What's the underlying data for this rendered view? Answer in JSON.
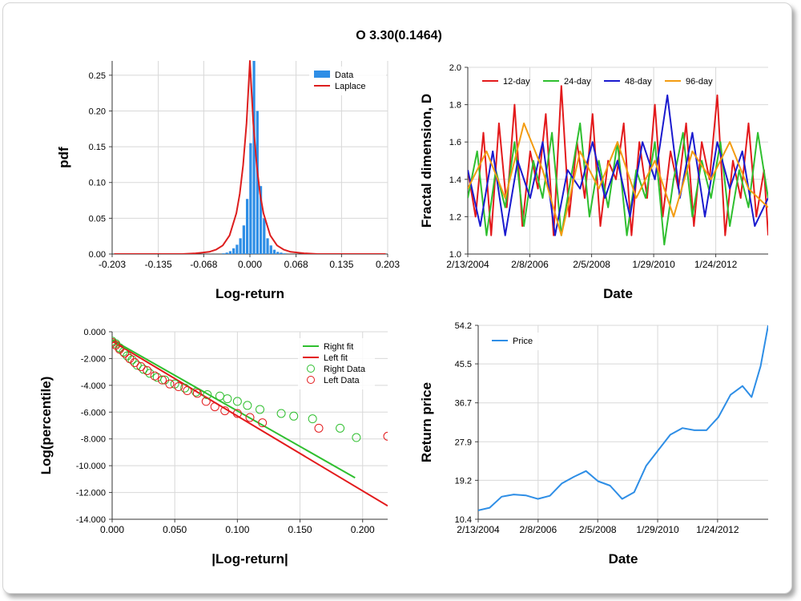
{
  "page": {
    "title": "O 3.30(0.1464)"
  },
  "chart_data": [
    {
      "id": "pdf",
      "type": "bar",
      "xlabel": "Log-return",
      "ylabel": "pdf",
      "xlim": [
        -0.203,
        0.203
      ],
      "ylim": [
        0,
        0.27
      ],
      "xticks": [
        "-0.203",
        "-0.135",
        "-0.068",
        "0.000",
        "0.068",
        "0.135",
        "0.203"
      ],
      "yticks": [
        "0.00",
        "0.05",
        "0.10",
        "0.15",
        "0.20",
        "0.25"
      ],
      "grid": true,
      "legend_position": "top-right",
      "series": [
        {
          "name": "Data",
          "kind": "bar",
          "color": "#2e8ee6",
          "x": [
            -0.039,
            -0.034,
            -0.029,
            -0.024,
            -0.019,
            -0.014,
            -0.009,
            -0.004,
            0.001,
            0.006,
            0.011,
            0.016,
            0.021,
            0.026,
            0.031,
            0.036,
            0.041,
            0.046,
            0.051
          ],
          "values": [
            0.001,
            0.002,
            0.004,
            0.008,
            0.013,
            0.022,
            0.04,
            0.077,
            0.155,
            0.27,
            0.2,
            0.095,
            0.05,
            0.022,
            0.012,
            0.006,
            0.003,
            0.002,
            0.001
          ]
        },
        {
          "name": "Laplace",
          "kind": "line",
          "color": "#dd1e1e",
          "x": [
            -0.2,
            -0.15,
            -0.1,
            -0.08,
            -0.06,
            -0.05,
            -0.04,
            -0.03,
            -0.02,
            -0.015,
            -0.01,
            -0.005,
            0.0,
            0.005,
            0.01,
            0.015,
            0.02,
            0.03,
            0.04,
            0.05,
            0.06,
            0.08,
            0.1,
            0.15,
            0.2
          ],
          "values": [
            0.0,
            0.0,
            0.0,
            0.001,
            0.003,
            0.006,
            0.012,
            0.026,
            0.057,
            0.084,
            0.124,
            0.183,
            0.27,
            0.183,
            0.124,
            0.084,
            0.057,
            0.026,
            0.012,
            0.006,
            0.003,
            0.001,
            0.0,
            0.0,
            0.0
          ]
        }
      ]
    },
    {
      "id": "fractal",
      "type": "line",
      "xlabel": "Date",
      "ylabel": "Fractal dimension, D",
      "xlim": [
        2004.12,
        2013.75
      ],
      "ylim": [
        1.0,
        2.0
      ],
      "xtick_positions": [
        2004.12,
        2006.11,
        2008.09,
        2010.08,
        2012.07
      ],
      "xticks": [
        "2/13/2004",
        "2/8/2006",
        "2/5/2008",
        "1/29/2010",
        "1/24/2012"
      ],
      "yticks": [
        "1.0",
        "1.2",
        "1.4",
        "1.6",
        "1.8",
        "2.0"
      ],
      "grid": true,
      "legend_position": "top",
      "series": [
        {
          "name": "12-day",
          "color": "#e31a1c",
          "x": [
            2004.12,
            2004.37,
            2004.62,
            2004.87,
            2005.12,
            2005.37,
            2005.62,
            2005.87,
            2006.12,
            2006.37,
            2006.62,
            2006.87,
            2007.12,
            2007.37,
            2007.62,
            2007.87,
            2008.12,
            2008.37,
            2008.62,
            2008.87,
            2009.12,
            2009.37,
            2009.62,
            2009.87,
            2010.12,
            2010.37,
            2010.62,
            2010.87,
            2011.12,
            2011.37,
            2011.62,
            2011.87,
            2012.12,
            2012.37,
            2012.62,
            2012.87,
            2013.12,
            2013.37,
            2013.62,
            2013.75
          ],
          "values": [
            1.45,
            1.2,
            1.65,
            1.1,
            1.7,
            1.25,
            1.8,
            1.15,
            1.55,
            1.35,
            1.75,
            1.1,
            1.9,
            1.2,
            1.6,
            1.3,
            1.75,
            1.15,
            1.5,
            1.4,
            1.7,
            1.1,
            1.6,
            1.3,
            1.8,
            1.2,
            1.55,
            1.35,
            1.7,
            1.15,
            1.6,
            1.4,
            1.85,
            1.1,
            1.5,
            1.3,
            1.7,
            1.2,
            1.45,
            1.1
          ]
        },
        {
          "name": "24-day",
          "color": "#2fbf2f",
          "x": [
            2004.12,
            2004.42,
            2004.72,
            2005.02,
            2005.32,
            2005.62,
            2005.92,
            2006.22,
            2006.52,
            2006.82,
            2007.12,
            2007.42,
            2007.72,
            2008.02,
            2008.32,
            2008.62,
            2008.92,
            2009.22,
            2009.52,
            2009.82,
            2010.12,
            2010.42,
            2010.72,
            2011.02,
            2011.32,
            2011.62,
            2011.92,
            2012.22,
            2012.52,
            2012.82,
            2013.12,
            2013.42,
            2013.75
          ],
          "values": [
            1.3,
            1.55,
            1.1,
            1.45,
            1.25,
            1.6,
            1.15,
            1.5,
            1.3,
            1.65,
            1.1,
            1.4,
            1.7,
            1.2,
            1.5,
            1.25,
            1.6,
            1.1,
            1.45,
            1.3,
            1.6,
            1.05,
            1.4,
            1.65,
            1.2,
            1.5,
            1.3,
            1.6,
            1.15,
            1.45,
            1.25,
            1.65,
            1.3
          ]
        },
        {
          "name": "48-day",
          "color": "#1a1acf",
          "x": [
            2004.12,
            2004.52,
            2004.92,
            2005.32,
            2005.72,
            2006.12,
            2006.52,
            2006.92,
            2007.32,
            2007.72,
            2008.12,
            2008.52,
            2008.92,
            2009.32,
            2009.72,
            2010.12,
            2010.52,
            2010.92,
            2011.32,
            2011.72,
            2012.12,
            2012.52,
            2012.92,
            2013.32,
            2013.75
          ],
          "values": [
            1.45,
            1.15,
            1.55,
            1.1,
            1.5,
            1.3,
            1.6,
            1.1,
            1.45,
            1.35,
            1.6,
            1.3,
            1.5,
            1.2,
            1.6,
            1.4,
            1.85,
            1.3,
            1.65,
            1.2,
            1.6,
            1.35,
            1.55,
            1.15,
            1.3
          ]
        },
        {
          "name": "96-day",
          "color": "#f39c12",
          "x": [
            2004.12,
            2004.72,
            2005.32,
            2005.92,
            2006.52,
            2007.12,
            2007.72,
            2008.32,
            2008.92,
            2009.52,
            2010.12,
            2010.72,
            2011.32,
            2011.92,
            2012.52,
            2013.12,
            2013.75
          ],
          "values": [
            1.35,
            1.55,
            1.3,
            1.7,
            1.45,
            1.1,
            1.55,
            1.35,
            1.6,
            1.3,
            1.5,
            1.2,
            1.55,
            1.4,
            1.6,
            1.35,
            1.25
          ]
        }
      ]
    },
    {
      "id": "tail",
      "type": "scatter",
      "xlabel": "|Log-return|",
      "ylabel": "Log(percentile)",
      "xlim": [
        0.0,
        0.22
      ],
      "ylim": [
        -14.0,
        0.0
      ],
      "xticks": [
        "0.000",
        "0.050",
        "0.100",
        "0.150",
        "0.200"
      ],
      "yticks": [
        "0.000",
        "-2.000",
        "-4.000",
        "-6.000",
        "-8.000",
        "-10.000",
        "-12.000",
        "-14.000"
      ],
      "grid": true,
      "legend_position": "top-right",
      "series": [
        {
          "name": "Right fit",
          "kind": "line",
          "color": "#2fbf2f",
          "x": [
            0.0,
            0.194
          ],
          "values": [
            -0.6,
            -10.9
          ]
        },
        {
          "name": "Left fit",
          "kind": "line",
          "color": "#e31a1c",
          "x": [
            0.0,
            0.22
          ],
          "values": [
            -0.7,
            -13.0
          ]
        },
        {
          "name": "Right Data",
          "kind": "scatter",
          "color": "#2fbf2f",
          "x": [
            0.0,
            0.003,
            0.006,
            0.009,
            0.012,
            0.016,
            0.02,
            0.025,
            0.03,
            0.036,
            0.042,
            0.05,
            0.058,
            0.067,
            0.076,
            0.086,
            0.092,
            0.1,
            0.108,
            0.118,
            0.135,
            0.145,
            0.16,
            0.182,
            0.195
          ],
          "values": [
            -0.7,
            -0.9,
            -1.2,
            -1.5,
            -1.8,
            -2.1,
            -2.5,
            -2.8,
            -3.1,
            -3.4,
            -3.6,
            -3.9,
            -4.2,
            -4.5,
            -4.7,
            -4.8,
            -5.0,
            -5.2,
            -5.5,
            -5.8,
            -6.1,
            -6.3,
            -6.5,
            -7.2,
            -7.9
          ]
        },
        {
          "name": "Left Data",
          "kind": "scatter",
          "color": "#e31a1c",
          "x": [
            0.0,
            0.003,
            0.006,
            0.01,
            0.014,
            0.018,
            0.023,
            0.028,
            0.034,
            0.04,
            0.046,
            0.053,
            0.06,
            0.068,
            0.075,
            0.082,
            0.09,
            0.1,
            0.11,
            0.12,
            0.165,
            0.22
          ],
          "values": [
            -0.8,
            -1.0,
            -1.3,
            -1.6,
            -2.0,
            -2.3,
            -2.6,
            -2.9,
            -3.3,
            -3.6,
            -3.9,
            -4.1,
            -4.4,
            -4.6,
            -5.2,
            -5.6,
            -5.9,
            -6.1,
            -6.4,
            -6.8,
            -7.2,
            -7.8
          ]
        }
      ]
    },
    {
      "id": "price",
      "type": "line",
      "xlabel": "Date",
      "ylabel": "Return price",
      "xlim": [
        2004.12,
        2013.75
      ],
      "ylim": [
        10.4,
        54.2
      ],
      "xtick_positions": [
        2004.12,
        2006.11,
        2008.09,
        2010.08,
        2012.07
      ],
      "xticks": [
        "2/13/2004",
        "2/8/2006",
        "2/5/2008",
        "1/29/2010",
        "1/24/2012"
      ],
      "yticks": [
        "10.4",
        "19.2",
        "27.9",
        "36.7",
        "45.5",
        "54.2"
      ],
      "grid": true,
      "legend_position": "top-left",
      "series": [
        {
          "name": "Price",
          "color": "#2e8ee6",
          "x": [
            2004.12,
            2004.5,
            2004.9,
            2005.3,
            2005.7,
            2006.1,
            2006.5,
            2006.9,
            2007.3,
            2007.7,
            2008.1,
            2008.5,
            2008.9,
            2009.3,
            2009.7,
            2010.1,
            2010.5,
            2010.9,
            2011.3,
            2011.7,
            2012.1,
            2012.5,
            2012.9,
            2013.2,
            2013.5,
            2013.75
          ],
          "values": [
            12.4,
            13.0,
            15.5,
            16.0,
            15.8,
            15.0,
            15.7,
            18.5,
            20.0,
            21.3,
            19.0,
            18.0,
            15.0,
            16.5,
            22.5,
            26.0,
            29.5,
            31.0,
            30.5,
            30.5,
            33.5,
            38.5,
            40.5,
            38.0,
            45.0,
            54.2
          ]
        }
      ]
    }
  ]
}
